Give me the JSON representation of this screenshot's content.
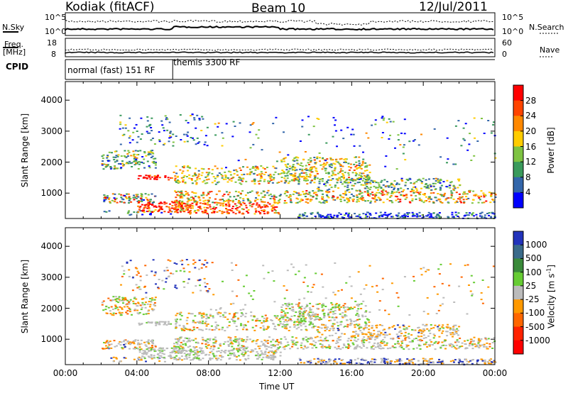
{
  "header": {
    "title_left": "Kodiak (fitACF)",
    "title_center": "Beam 10",
    "title_right": "12/Jul/2011"
  },
  "status_panels": {
    "nsky_label": "N.Sky",
    "nsearch_label": "N.Search",
    "freq_label_1": "Freq.",
    "freq_label_2": "[MHz]",
    "nave_label": "Nave",
    "cpid_label": "CPID",
    "noise_ticks_left": [
      "10^5",
      "10^0"
    ],
    "noise_ticks_right": [
      "10^5",
      "10^0"
    ],
    "freq_ticks": [
      "18",
      "8"
    ],
    "nave_ticks": [
      "60",
      "0"
    ],
    "cpid_segments": [
      {
        "label": "normal (fast) 151 RF",
        "start_hour": 0,
        "end_hour": 6
      },
      {
        "label": "themis 3300 RF",
        "start_hour": 6,
        "end_hour": 24
      }
    ]
  },
  "chart_data": [
    {
      "type": "heatmap",
      "name": "power",
      "xlabel": "",
      "ylabel": "Slant Range [km]",
      "xlim": [
        0,
        24
      ],
      "ylim": [
        180,
        4600
      ],
      "yticks": [
        "1000",
        "2000",
        "3000",
        "4000"
      ],
      "colorbar_label": "Power [dB]",
      "colorbar_ticks": [
        "28",
        "24",
        "20",
        "16",
        "12",
        "8",
        "4"
      ],
      "colors": [
        "#ff0000",
        "#ff4400",
        "#ff8800",
        "#ffcc00",
        "#7ec342",
        "#3a9a5c",
        "#3366aa",
        "#0000ff"
      ]
    },
    {
      "type": "heatmap",
      "name": "velocity",
      "xlabel": "Time UT",
      "ylabel": "Slant Range [km]",
      "xlim": [
        0,
        24
      ],
      "ylim": [
        180,
        4600
      ],
      "yticks": [
        "1000",
        "2000",
        "3000",
        "4000"
      ],
      "xticks": [
        "00:00",
        "04:00",
        "08:00",
        "12:00",
        "16:00",
        "20:00",
        "00:00"
      ],
      "colorbar_label": "Velocity [m s",
      "colorbar_label_sup": "-1",
      "colorbar_label_end": "]",
      "colorbar_ticks": [
        "1000",
        "500",
        "100",
        "25",
        "-25",
        "-100",
        "-500",
        "-1000"
      ],
      "colors": [
        "#2233bb",
        "#3a6a8a",
        "#3a8a3a",
        "#66cc33",
        "#bbbbbb",
        "#ff9900",
        "#ff6600",
        "#ff2200",
        "#ff0000"
      ]
    }
  ]
}
